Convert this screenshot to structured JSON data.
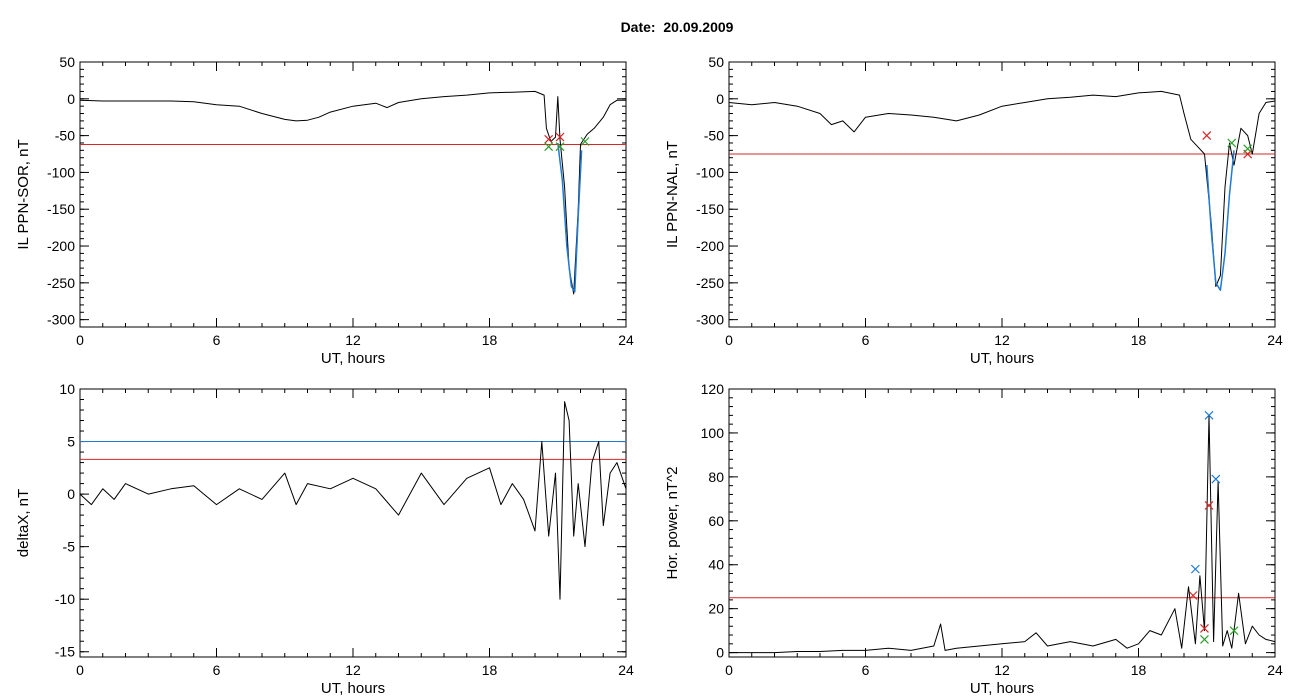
{
  "figure": {
    "date_label": "Date:",
    "date_value": "20.09.2009"
  },
  "chart_data": [
    {
      "type": "line",
      "title": "",
      "xlabel": "UT, hours",
      "ylabel": "IL PPN-SOR, nT",
      "xlim": [
        0,
        24
      ],
      "ylim": [
        -310,
        50
      ],
      "xticks": [
        0,
        6,
        12,
        18,
        24
      ],
      "yticks": [
        50,
        0,
        -50,
        -100,
        -150,
        -200,
        -250,
        -300
      ],
      "grid": false,
      "series": [
        {
          "color": "#000000",
          "x": [
            0,
            1,
            2,
            3,
            4,
            5,
            6,
            7,
            8,
            9,
            9.5,
            10,
            10.5,
            11,
            12,
            13,
            13.5,
            14,
            15,
            16,
            17,
            18,
            19,
            20,
            20.4,
            20.5,
            20.7,
            20.9,
            21.0,
            21.1,
            21.3,
            21.5,
            21.7,
            21.9,
            22.0,
            22.3,
            22.6,
            23.0,
            23.3,
            23.6,
            24
          ],
          "y": [
            -2,
            -3,
            -3,
            -3,
            -3,
            -4,
            -8,
            -10,
            -20,
            -28,
            -30,
            -29,
            -25,
            -18,
            -10,
            -6,
            -12,
            -5,
            0,
            3,
            5,
            8,
            9,
            10,
            5,
            -40,
            -58,
            -52,
            3,
            -55,
            -120,
            -230,
            -265,
            -150,
            -62,
            -48,
            -40,
            -25,
            -8,
            -2,
            -2
          ]
        },
        {
          "color": "#1f7bd3",
          "x": [
            21.0,
            21.2,
            21.4,
            21.6,
            21.75,
            21.9,
            22.05
          ],
          "y": [
            -60,
            -110,
            -200,
            -255,
            -262,
            -160,
            -70
          ]
        }
      ],
      "thresholds": [
        {
          "value": -62,
          "color": "#d62728"
        }
      ],
      "markers": [
        {
          "x": 20.6,
          "y": -55,
          "color": "#d62728"
        },
        {
          "x": 21.1,
          "y": -52,
          "color": "#d62728"
        },
        {
          "x": 20.6,
          "y": -65,
          "color": "#2ca02c"
        },
        {
          "x": 21.1,
          "y": -65,
          "color": "#2ca02c"
        },
        {
          "x": 22.2,
          "y": -58,
          "color": "#2ca02c"
        }
      ]
    },
    {
      "type": "line",
      "title": "",
      "xlabel": "UT, hours",
      "ylabel": "IL PPN-NAL, nT",
      "xlim": [
        0,
        24
      ],
      "ylim": [
        -310,
        50
      ],
      "xticks": [
        0,
        6,
        12,
        18,
        24
      ],
      "yticks": [
        50,
        0,
        -50,
        -100,
        -150,
        -200,
        -250,
        -300
      ],
      "grid": false,
      "series": [
        {
          "color": "#000000",
          "x": [
            0,
            1,
            2,
            3,
            4,
            4.5,
            5,
            5.5,
            6,
            7,
            8,
            9,
            10,
            11,
            12,
            13,
            14,
            15,
            16,
            17,
            18,
            19,
            19.8,
            20.0,
            20.3,
            20.6,
            20.9,
            21.2,
            21.4,
            21.6,
            21.8,
            22.0,
            22.2,
            22.5,
            22.8,
            23.0,
            23.3,
            23.6,
            24
          ],
          "y": [
            -5,
            -8,
            -5,
            -10,
            -20,
            -35,
            -30,
            -45,
            -25,
            -20,
            -22,
            -25,
            -30,
            -22,
            -10,
            -5,
            0,
            2,
            5,
            3,
            8,
            10,
            5,
            -20,
            -55,
            -65,
            -75,
            -170,
            -255,
            -240,
            -120,
            -60,
            -90,
            -40,
            -50,
            -75,
            -20,
            -5,
            -3
          ]
        },
        {
          "color": "#1f7bd3",
          "x": [
            21.0,
            21.2,
            21.4,
            21.6,
            21.8,
            22.0,
            22.2
          ],
          "y": [
            -90,
            -180,
            -250,
            -260,
            -210,
            -130,
            -70
          ]
        }
      ],
      "thresholds": [
        {
          "value": -75,
          "color": "#d62728"
        }
      ],
      "markers": [
        {
          "x": 21.0,
          "y": -50,
          "color": "#d62728"
        },
        {
          "x": 22.8,
          "y": -75,
          "color": "#d62728"
        },
        {
          "x": 22.1,
          "y": -60,
          "color": "#2ca02c"
        },
        {
          "x": 22.8,
          "y": -68,
          "color": "#2ca02c"
        }
      ]
    },
    {
      "type": "line",
      "title": "",
      "xlabel": "UT, hours",
      "ylabel": "deltaX, nT",
      "xlim": [
        0,
        24
      ],
      "ylim": [
        -15.5,
        10
      ],
      "xticks": [
        0,
        6,
        12,
        18,
        24
      ],
      "yticks": [
        10,
        5,
        0,
        -5,
        -10,
        -15
      ],
      "grid": false,
      "series": [
        {
          "color": "#000000",
          "x": [
            0,
            0.5,
            1,
            1.5,
            2,
            3,
            4,
            5,
            6,
            7,
            8,
            9,
            9.5,
            10,
            11,
            12,
            13,
            14,
            15,
            16,
            17,
            18,
            18.5,
            19,
            19.5,
            20,
            20.3,
            20.6,
            20.9,
            21.1,
            21.3,
            21.5,
            21.7,
            21.9,
            22.2,
            22.5,
            22.8,
            23.0,
            23.3,
            23.6,
            24
          ],
          "y": [
            0,
            -1,
            0.5,
            -0.5,
            1,
            0,
            0.5,
            0.8,
            -1,
            0.5,
            -0.5,
            2,
            -1,
            1,
            0.5,
            1.5,
            0.5,
            -2,
            2,
            -1,
            1.5,
            2.5,
            -1,
            1,
            -0.5,
            -3.5,
            5,
            -4,
            2,
            -10,
            8.8,
            7,
            -4,
            1,
            -5,
            3,
            5,
            -3,
            2,
            3,
            0.5
          ]
        }
      ],
      "thresholds": [
        {
          "value": 5.0,
          "color": "#1f7bd3"
        },
        {
          "value": 3.3,
          "color": "#d62728"
        }
      ],
      "markers": []
    },
    {
      "type": "line",
      "title": "",
      "xlabel": "UT, hours",
      "ylabel": "Hor. power, nT^2",
      "xlim": [
        0,
        24
      ],
      "ylim": [
        -2,
        120
      ],
      "xticks": [
        0,
        6,
        12,
        18,
        24
      ],
      "yticks": [
        120,
        100,
        80,
        60,
        40,
        20,
        0
      ],
      "grid": false,
      "series": [
        {
          "color": "#000000",
          "x": [
            0,
            1,
            2,
            3,
            4,
            5,
            6,
            7,
            8,
            9,
            9.3,
            9.5,
            10,
            11,
            12,
            13,
            13.5,
            14,
            15,
            16,
            17,
            17.5,
            18,
            18.5,
            19,
            19.6,
            19.9,
            20.2,
            20.5,
            20.7,
            20.9,
            21.1,
            21.3,
            21.5,
            21.7,
            21.9,
            22.1,
            22.4,
            22.7,
            23.0,
            23.3,
            23.6,
            24
          ],
          "y": [
            0,
            0,
            0,
            0.5,
            0.5,
            1,
            1,
            2,
            1,
            3,
            13,
            1,
            2,
            3,
            4,
            5,
            9,
            3,
            5,
            3,
            6,
            2,
            4,
            10,
            8,
            20,
            2,
            30,
            4,
            35,
            10,
            108,
            5,
            78,
            3,
            10,
            2,
            27,
            4,
            12,
            8,
            6,
            5
          ]
        }
      ],
      "thresholds": [
        {
          "value": 25,
          "color": "#d62728"
        }
      ],
      "markers": [
        {
          "x": 20.5,
          "y": 38,
          "color": "#1f7bd3"
        },
        {
          "x": 21.1,
          "y": 108,
          "color": "#1f7bd3"
        },
        {
          "x": 21.4,
          "y": 79,
          "color": "#1f7bd3"
        },
        {
          "x": 20.4,
          "y": 26,
          "color": "#d62728"
        },
        {
          "x": 21.1,
          "y": 67,
          "color": "#d62728"
        },
        {
          "x": 20.9,
          "y": 11,
          "color": "#d62728"
        },
        {
          "x": 20.9,
          "y": 6,
          "color": "#2ca02c"
        },
        {
          "x": 22.2,
          "y": 10,
          "color": "#2ca02c"
        }
      ]
    }
  ]
}
